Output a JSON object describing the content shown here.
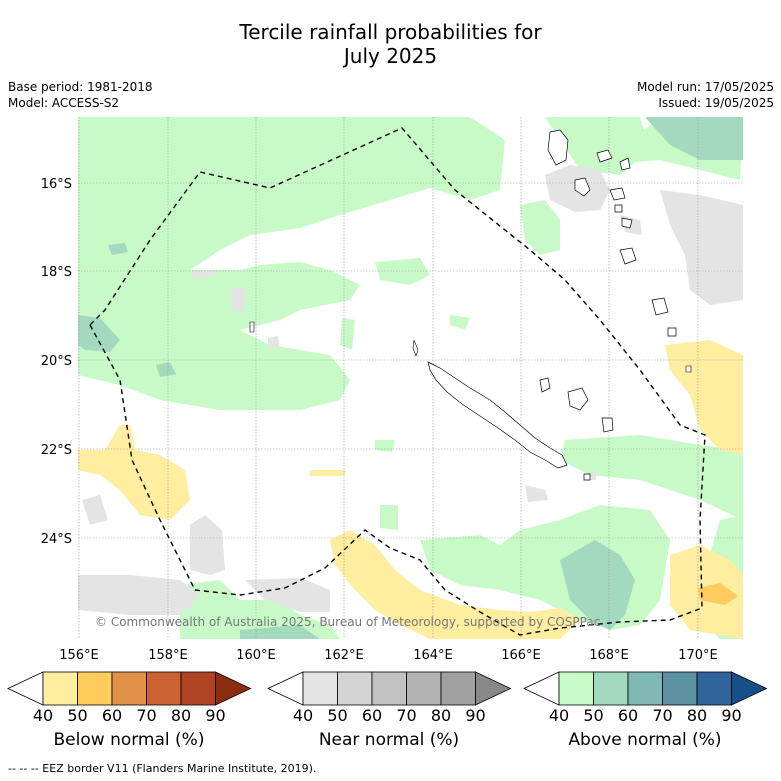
{
  "title_line1": "Tercile rainfall probabilities for",
  "title_line2": "July 2025",
  "meta_left": {
    "base_period": "Base period: 1981-2018",
    "model": "Model: ACCESS-S2"
  },
  "meta_right": {
    "model_run": "Model run: 17/05/2025",
    "issued": "Issued: 19/05/2025"
  },
  "map": {
    "lat_labels": [
      "16°S",
      "18°S",
      "20°S",
      "22°S",
      "24°S"
    ],
    "lon_labels": [
      "156°E",
      "158°E",
      "160°E",
      "162°E",
      "164°E",
      "166°E",
      "168°E",
      "170°E"
    ],
    "copyright": "© Commonwealth of Australia 2025, Bureau of Meteorology, supported by COSPPac"
  },
  "colorbars": [
    {
      "title": "Below normal (%)",
      "ticks": [
        "40",
        "50",
        "60",
        "70",
        "80",
        "90"
      ],
      "colors": [
        "#ffeda0",
        "#fecb5c",
        "#e1914a",
        "#cc6133",
        "#ae4222",
        "#8c2d10"
      ]
    },
    {
      "title": "Near normal (%)",
      "ticks": [
        "40",
        "50",
        "60",
        "70",
        "80",
        "90"
      ],
      "colors": [
        "#e4e4e4",
        "#d4d4d4",
        "#c2c2c2",
        "#b2b2b2",
        "#a0a0a0",
        "#888888"
      ]
    },
    {
      "title": "Above normal (%)",
      "ticks": [
        "40",
        "50",
        "60",
        "70",
        "80",
        "90"
      ],
      "colors": [
        "#c8fac8",
        "#a3d9be",
        "#80b8b5",
        "#5b91a1",
        "#30649b",
        "#174f88"
      ]
    }
  ],
  "footer": "--  --  -- EEZ border V11 (Flanders Marine Institute, 2019)."
}
